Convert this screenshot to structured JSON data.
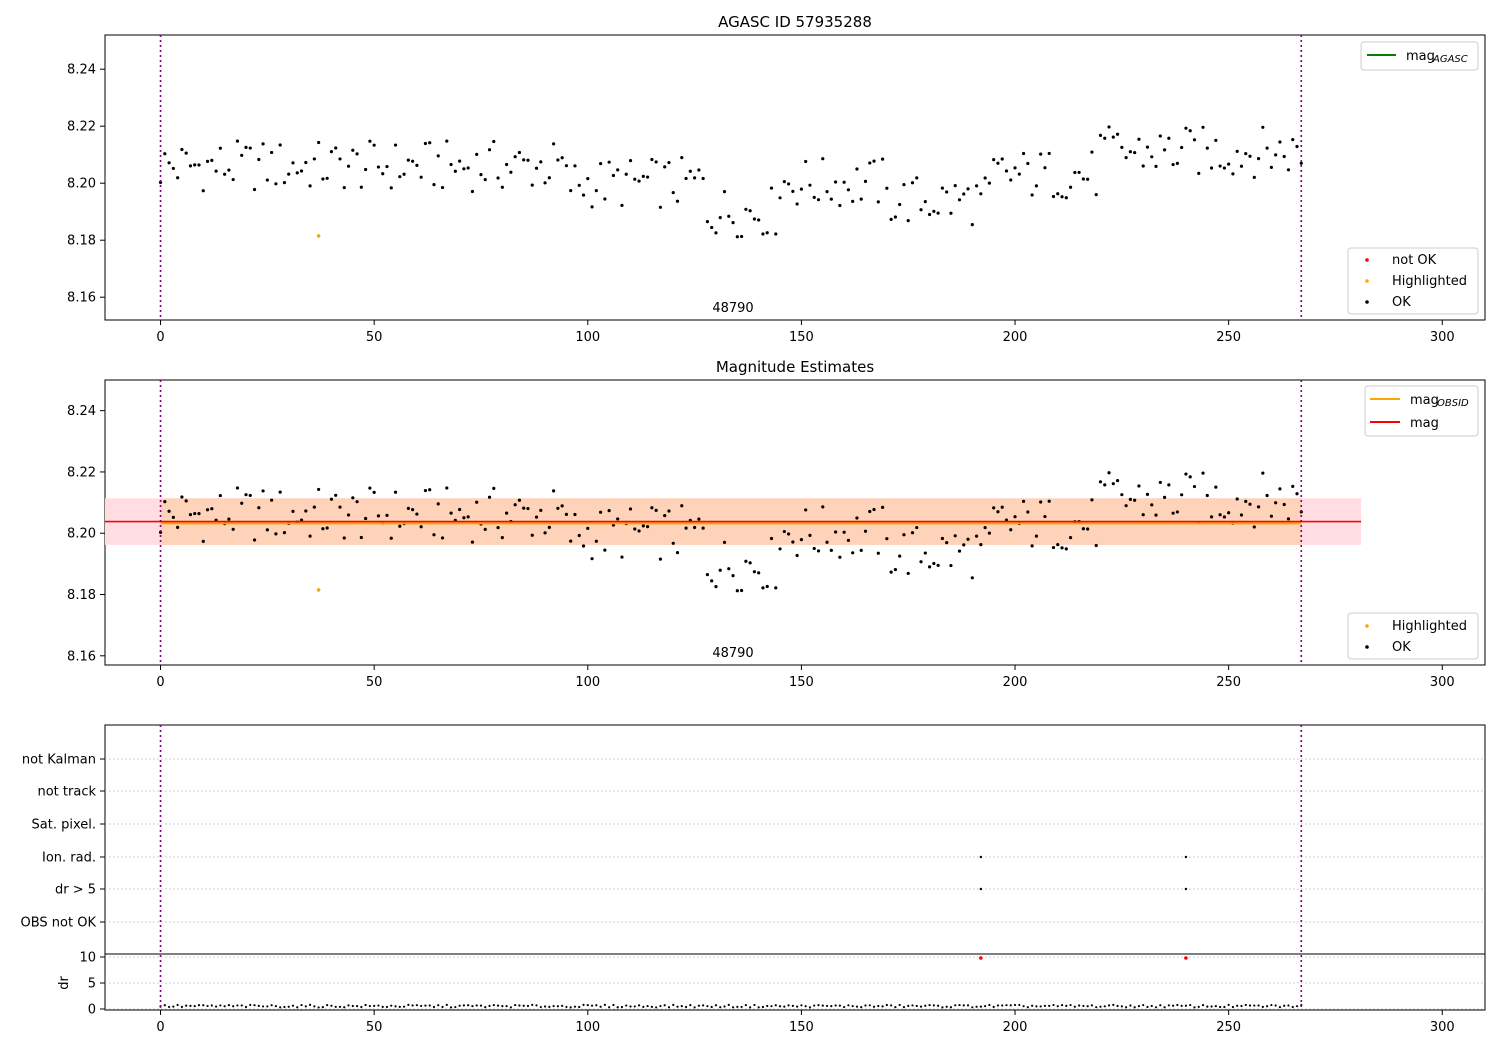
{
  "chart_data": [
    {
      "type": "scatter",
      "title": "AGASC ID 57935288",
      "ylim": [
        8.152,
        8.252
      ],
      "xlim": [
        -13,
        310
      ],
      "xticks": [
        0,
        50,
        100,
        150,
        200,
        250,
        300
      ],
      "yticks": [
        8.16,
        8.18,
        8.2,
        8.22,
        8.24
      ],
      "ytick_labels": [
        "8.16",
        "8.18",
        "8.20",
        "8.22",
        "8.24"
      ],
      "vlines": [
        0,
        267
      ],
      "annotation": "48790",
      "annotation_x": 133,
      "legend_lines": [
        {
          "label": "mag",
          "sub": "AGASC",
          "color": "#008000"
        }
      ],
      "legend_points": [
        {
          "label": "not OK",
          "color": "#ff0000"
        },
        {
          "label": "Highlighted",
          "color": "#ffa500"
        },
        {
          "label": "OK",
          "color": "#000000"
        }
      ],
      "highlighted": [
        {
          "x": 37,
          "y": 8.1815
        }
      ]
    },
    {
      "type": "scatter",
      "title": "Magnitude Estimates",
      "ylim": [
        8.157,
        8.25
      ],
      "xlim": [
        -13,
        310
      ],
      "xticks": [
        0,
        50,
        100,
        150,
        200,
        250,
        300
      ],
      "yticks": [
        8.16,
        8.18,
        8.2,
        8.22,
        8.24
      ],
      "ytick_labels": [
        "8.16",
        "8.18",
        "8.20",
        "8.22",
        "8.24"
      ],
      "vlines": [
        0,
        267
      ],
      "annotation": "48790",
      "annotation_x": 133,
      "mag": 8.2038,
      "mag_obsid": 8.2032,
      "band": [
        8.1962,
        8.2114
      ],
      "band_xmax": 281,
      "legend_lines": [
        {
          "label": "mag",
          "sub": "OBSID",
          "color": "#ffa500"
        },
        {
          "label": "mag",
          "sub": "",
          "color": "#ff0000"
        }
      ],
      "legend_points": [
        {
          "label": "Highlighted",
          "color": "#ffa500"
        },
        {
          "label": "OK",
          "color": "#000000"
        }
      ],
      "highlighted": [
        {
          "x": 37,
          "y": 8.1815
        }
      ]
    },
    {
      "type": "scatter",
      "title": "",
      "xlim": [
        -13,
        310
      ],
      "xticks": [
        0,
        50,
        100,
        150,
        200,
        250,
        300
      ],
      "xtick_labels": [
        "0",
        "50",
        "100",
        "150",
        "200",
        "250",
        "300"
      ],
      "flag_labels": [
        "not Kalman",
        "not track",
        "Sat. pixel.",
        "Ion. rad.",
        "dr > 5",
        "OBS not OK"
      ],
      "flag_points": [
        {
          "flag": "Ion. rad.",
          "x": [
            192,
            240
          ]
        },
        {
          "flag": "dr > 5",
          "x": [
            192,
            240
          ]
        }
      ],
      "vlines": [
        0,
        267
      ],
      "dr_ylabel": "dr",
      "dr_yticks": [
        "0",
        "5",
        "10"
      ],
      "dr_spikes": [
        {
          "x": 192,
          "y": 10
        },
        {
          "x": 240,
          "y": 10
        }
      ]
    }
  ],
  "colors": {
    "ok": "#000000",
    "highlighted": "#ffa500",
    "not_ok": "#ff0000",
    "vline": "#800080",
    "band": "#ff9999"
  }
}
